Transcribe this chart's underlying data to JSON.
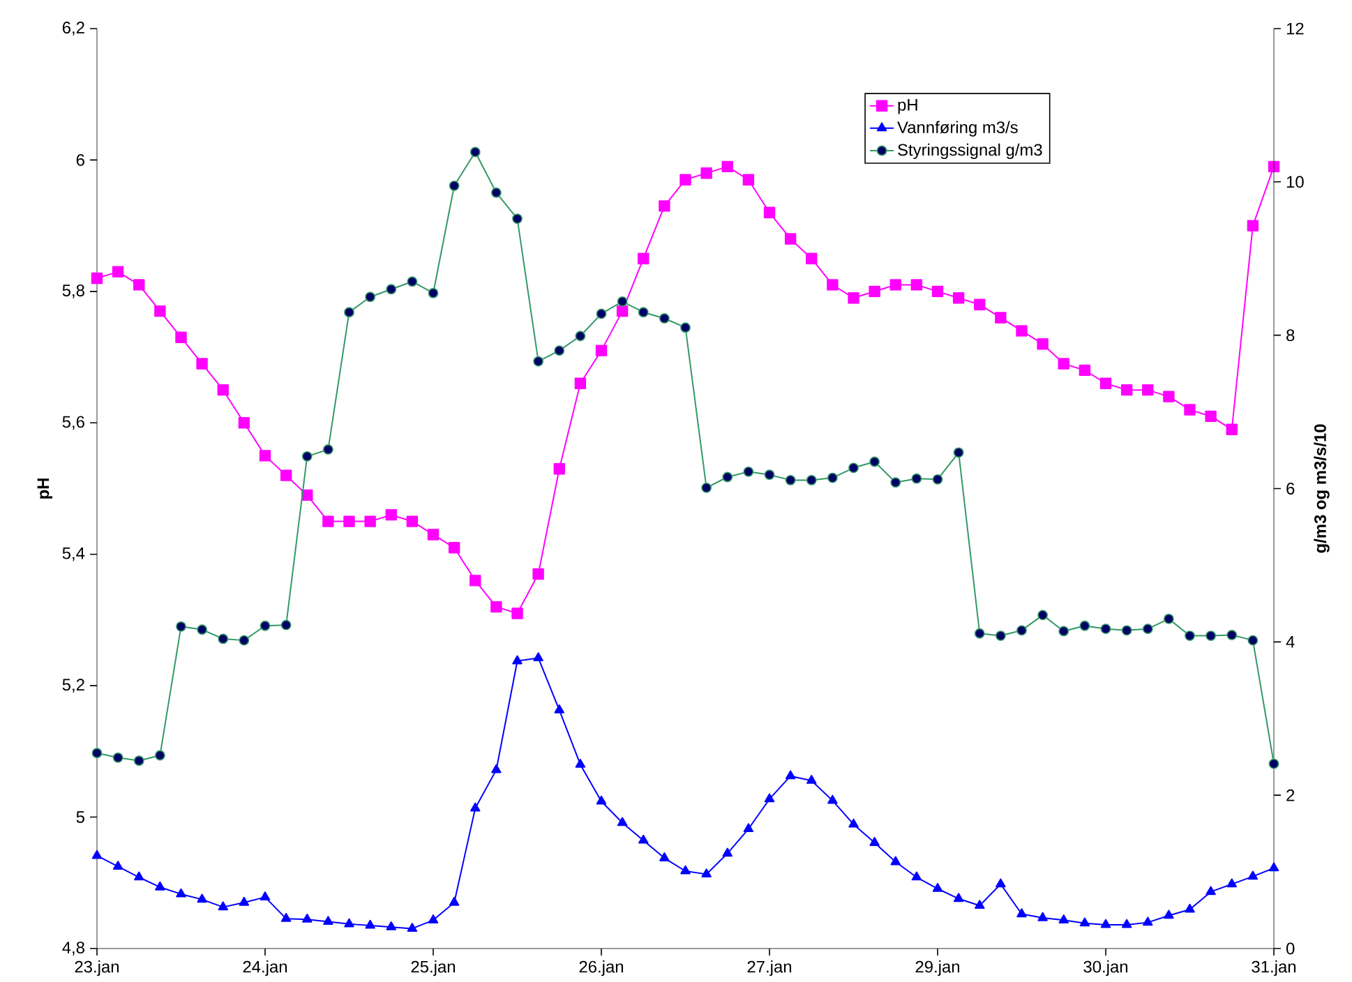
{
  "chart_data": {
    "type": "line",
    "ylabel": "pH",
    "y2label": "g/m3 og m3/s/10",
    "categories": [
      "23.jan",
      null,
      null,
      null,
      null,
      null,
      null,
      null,
      "24.jan",
      null,
      null,
      null,
      null,
      null,
      null,
      null,
      "25.jan",
      null,
      null,
      null,
      null,
      null,
      null,
      null,
      "26.jan",
      null,
      null,
      null,
      null,
      null,
      null,
      null,
      "27.jan",
      null,
      null,
      null,
      null,
      null,
      null,
      null,
      "29.jan",
      null,
      null,
      null,
      null,
      null,
      null,
      null,
      "30.jan",
      null,
      null,
      null,
      null,
      null,
      null,
      null,
      "31.jan"
    ],
    "ylim": [
      4.8,
      6.2
    ],
    "yticks": [
      {
        "value": 4.8,
        "label": "4,8"
      },
      5,
      {
        "value": 5.2,
        "label": "5,2"
      },
      {
        "value": 5.4,
        "label": "5,4"
      },
      {
        "value": 5.6,
        "label": "5,6"
      },
      {
        "value": 5.8,
        "label": "5,8"
      },
      6,
      {
        "value": 6.2,
        "label": "6,2"
      }
    ],
    "y2lim": [
      0,
      12
    ],
    "y2ticks": [
      0,
      2,
      4,
      6,
      8,
      10,
      12
    ],
    "grid": false,
    "legend": "top right",
    "series": [
      {
        "name": "pH",
        "color": "#ff00ff",
        "marker": "square",
        "values": [
          5.82,
          5.83,
          5.81,
          5.77,
          5.73,
          5.69,
          5.65,
          5.6,
          5.55,
          5.52,
          5.49,
          5.45,
          5.45,
          5.45,
          5.46,
          5.45,
          5.43,
          5.41,
          5.36,
          5.32,
          5.31,
          5.37,
          5.53,
          5.66,
          5.71,
          5.77,
          5.85,
          5.93,
          5.97,
          5.98,
          5.99,
          5.97,
          5.92,
          5.88,
          5.85,
          5.81,
          5.79,
          5.8,
          5.81,
          5.81,
          5.8,
          5.79,
          5.78,
          5.76,
          5.74,
          5.72,
          5.69,
          5.68,
          5.66,
          5.65,
          5.65,
          5.64,
          5.62,
          5.61,
          5.59,
          5.9,
          5.99
        ]
      },
      {
        "name": "Vannføring m3/s",
        "color": "#0000ff",
        "marker": "triangle",
        "axis": "y2",
        "values": [
          1.21,
          1.07,
          0.93,
          0.8,
          0.71,
          0.64,
          0.54,
          0.6,
          0.67,
          0.39,
          0.38,
          0.35,
          0.32,
          0.3,
          0.28,
          0.26,
          0.37,
          0.6,
          1.83,
          2.33,
          3.75,
          3.79,
          3.11,
          2.4,
          1.92,
          1.64,
          1.41,
          1.18,
          1.01,
          0.97,
          1.24,
          1.56,
          1.95,
          2.25,
          2.19,
          1.93,
          1.62,
          1.38,
          1.13,
          0.93,
          0.78,
          0.65,
          0.56,
          0.84,
          0.45,
          0.4,
          0.37,
          0.33,
          0.31,
          0.31,
          0.34,
          0.43,
          0.51,
          0.74,
          0.84,
          0.94,
          1.05
        ]
      },
      {
        "name": "Styringssignal g/m3",
        "color": "#339966",
        "marker": "circle",
        "axis": "y2",
        "values": [
          2.55,
          2.49,
          2.45,
          2.52,
          4.2,
          4.16,
          4.04,
          4.02,
          4.21,
          4.22,
          6.42,
          6.51,
          8.3,
          8.5,
          8.6,
          8.7,
          8.55,
          9.95,
          10.39,
          9.86,
          9.52,
          7.66,
          7.8,
          7.99,
          8.28,
          8.44,
          8.3,
          8.22,
          8.1,
          6.01,
          6.15,
          6.22,
          6.18,
          6.11,
          6.11,
          6.14,
          6.27,
          6.35,
          6.08,
          6.13,
          6.12,
          6.47,
          4.11,
          4.08,
          4.15,
          4.35,
          4.14,
          4.21,
          4.17,
          4.15,
          4.17,
          4.3,
          4.08,
          4.08,
          4.09,
          4.02,
          2.41
        ]
      }
    ]
  }
}
